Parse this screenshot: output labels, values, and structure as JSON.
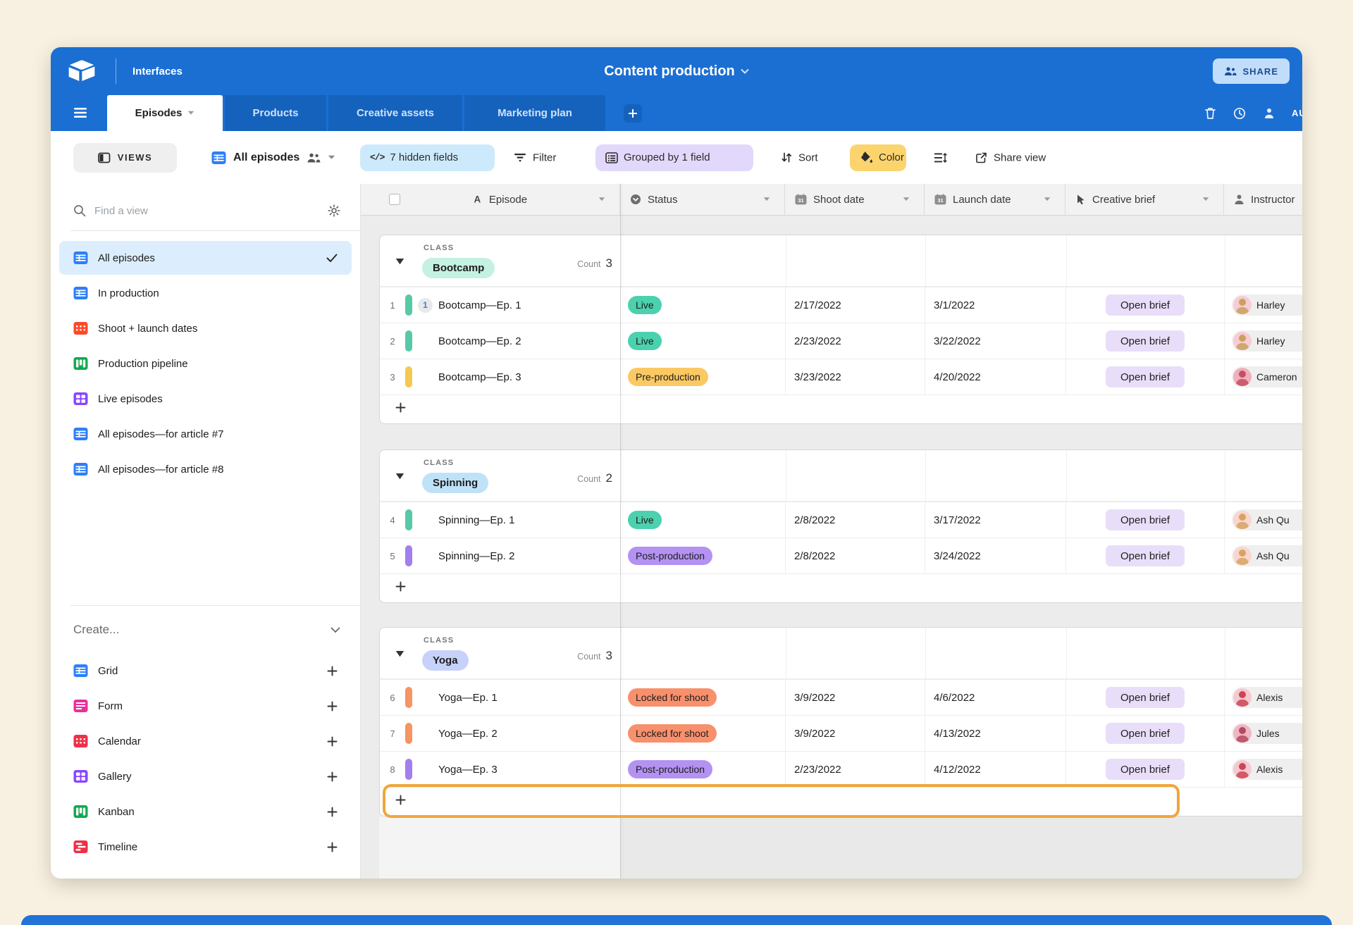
{
  "topbar": {
    "workspace_label": "Interfaces",
    "title": "Content production",
    "share_label": "SHARE",
    "automations_label": "AU"
  },
  "tabs": [
    {
      "label": "Episodes",
      "active": true
    },
    {
      "label": "Products",
      "active": false
    },
    {
      "label": "Creative assets",
      "active": false
    },
    {
      "label": "Marketing plan",
      "active": false
    }
  ],
  "toolbar": {
    "views_label": "VIEWS",
    "view_name": "All episodes",
    "hidden_fields_label": "7 hidden fields",
    "filter_label": "Filter",
    "grouped_label": "Grouped by 1 field",
    "sort_label": "Sort",
    "color_label": "Color",
    "share_view_label": "Share view",
    "hidden_pill_bg": "#cdeafc",
    "grouped_pill_bg": "#e2d8fb",
    "color_pill_bg": "#fcd46e"
  },
  "sidebar": {
    "search_placeholder": "Find a view",
    "views": [
      {
        "label": "All episodes",
        "icon": "grid",
        "color": "#2d7ff9",
        "selected": true
      },
      {
        "label": "In production",
        "icon": "grid",
        "color": "#2d7ff9",
        "selected": false
      },
      {
        "label": "Shoot + launch dates",
        "icon": "calendar",
        "color": "#fa4a2a",
        "selected": false
      },
      {
        "label": "Production pipeline",
        "icon": "kanban",
        "color": "#13a94c",
        "selected": false
      },
      {
        "label": "Live episodes",
        "icon": "gallery",
        "color": "#8b46ff",
        "selected": false
      },
      {
        "label": "All episodes—for article #7",
        "icon": "grid",
        "color": "#2d7ff9",
        "selected": false
      },
      {
        "label": "All episodes—for article #8",
        "icon": "grid",
        "color": "#2d7ff9",
        "selected": false
      }
    ],
    "create_label": "Create...",
    "create_items": [
      {
        "label": "Grid",
        "icon": "grid",
        "color": "#2d7ff9"
      },
      {
        "label": "Form",
        "icon": "form",
        "color": "#e9309c"
      },
      {
        "label": "Calendar",
        "icon": "calendar",
        "color": "#ef3049"
      },
      {
        "label": "Gallery",
        "icon": "gallery",
        "color": "#8b46ff"
      },
      {
        "label": "Kanban",
        "icon": "kanban",
        "color": "#13a94c"
      },
      {
        "label": "Timeline",
        "icon": "timeline",
        "color": "#ef3049"
      }
    ]
  },
  "table": {
    "columns": [
      {
        "label": "Episode",
        "icon": "text-icon"
      },
      {
        "label": "Status",
        "icon": "single-select-icon"
      },
      {
        "label": "Shoot date",
        "icon": "calendar-icon"
      },
      {
        "label": "Launch date",
        "icon": "calendar-icon"
      },
      {
        "label": "Creative brief",
        "icon": "button-icon"
      },
      {
        "label": "Instructor",
        "icon": "person-icon"
      }
    ],
    "group_field_label": "CLASS",
    "count_label": "Count",
    "add_row_label": "+",
    "groups": [
      {
        "name": "Bootcamp",
        "pill_bg": "#c4f1e2",
        "count": "3",
        "highlight_add_row": false,
        "rows": [
          {
            "num": "1",
            "bar": "#57c9a6",
            "badge": "1",
            "name": "Bootcamp—Ep. 1",
            "status": "Live",
            "status_bg": "#4bd1ad",
            "shoot_date": "2/17/2022",
            "launch_date": "3/1/2022",
            "brief_label": "Open brief",
            "instructor": "Harley",
            "avatar_bg": "#f7ccd4",
            "avatar_fg": "#c9a15d"
          },
          {
            "num": "2",
            "bar": "#57c9a6",
            "badge": "",
            "name": "Bootcamp—Ep. 2",
            "status": "Live",
            "status_bg": "#4bd1ad",
            "shoot_date": "2/23/2022",
            "launch_date": "3/22/2022",
            "brief_label": "Open brief",
            "instructor": "Harley",
            "avatar_bg": "#f7ccd4",
            "avatar_fg": "#c9a15d"
          },
          {
            "num": "3",
            "bar": "#f6c751",
            "badge": "",
            "name": "Bootcamp—Ep. 3",
            "status": "Pre-production",
            "status_bg": "#fbc963",
            "shoot_date": "3/23/2022",
            "launch_date": "4/20/2022",
            "brief_label": "Open brief",
            "instructor": "Cameron",
            "avatar_bg": "#eeb0bb",
            "avatar_fg": "#c74e62"
          }
        ]
      },
      {
        "name": "Spinning",
        "pill_bg": "#bfe2f8",
        "count": "2",
        "highlight_add_row": false,
        "rows": [
          {
            "num": "4",
            "bar": "#57c9a6",
            "badge": "",
            "name": "Spinning—Ep. 1",
            "status": "Live",
            "status_bg": "#4bd1ad",
            "shoot_date": "2/8/2022",
            "launch_date": "3/17/2022",
            "brief_label": "Open brief",
            "instructor": "Ash Qu",
            "avatar_bg": "#f8d6cf",
            "avatar_fg": "#d9a35f"
          },
          {
            "num": "5",
            "bar": "#a37eee",
            "badge": "",
            "name": "Spinning—Ep. 2",
            "status": "Post-production",
            "status_bg": "#b392f2",
            "shoot_date": "2/8/2022",
            "launch_date": "3/24/2022",
            "brief_label": "Open brief",
            "instructor": "Ash Qu",
            "avatar_bg": "#f8d6cf",
            "avatar_fg": "#d9a35f"
          }
        ]
      },
      {
        "name": "Yoga",
        "pill_bg": "#c7d2fa",
        "count": "3",
        "highlight_add_row": true,
        "rows": [
          {
            "num": "6",
            "bar": "#f69463",
            "badge": "",
            "name": "Yoga—Ep. 1",
            "status": "Locked for shoot",
            "status_bg": "#f9906c",
            "shoot_date": "3/9/2022",
            "launch_date": "4/6/2022",
            "brief_label": "Open brief",
            "instructor": "Alexis",
            "avatar_bg": "#f5c9d0",
            "avatar_fg": "#cc4557"
          },
          {
            "num": "7",
            "bar": "#f69463",
            "badge": "",
            "name": "Yoga—Ep. 2",
            "status": "Locked for shoot",
            "status_bg": "#f9906c",
            "shoot_date": "3/9/2022",
            "launch_date": "4/13/2022",
            "brief_label": "Open brief",
            "instructor": "Jules",
            "avatar_bg": "#f0b6c2",
            "avatar_fg": "#b44a62"
          },
          {
            "num": "8",
            "bar": "#a37eee",
            "badge": "",
            "name": "Yoga—Ep. 3",
            "status": "Post-production",
            "status_bg": "#b392f2",
            "shoot_date": "2/23/2022",
            "launch_date": "4/12/2022",
            "brief_label": "Open brief",
            "instructor": "Alexis",
            "avatar_bg": "#f5c9d0",
            "avatar_fg": "#cc4557"
          }
        ]
      }
    ]
  },
  "colors": {
    "header_blue": "#1b6fd3",
    "tab_inactive_blue": "#1562bd",
    "page_background": "#f8f0e0",
    "highlight_ring": "#f0a63c",
    "selected_view_bg": "#dceefd"
  }
}
